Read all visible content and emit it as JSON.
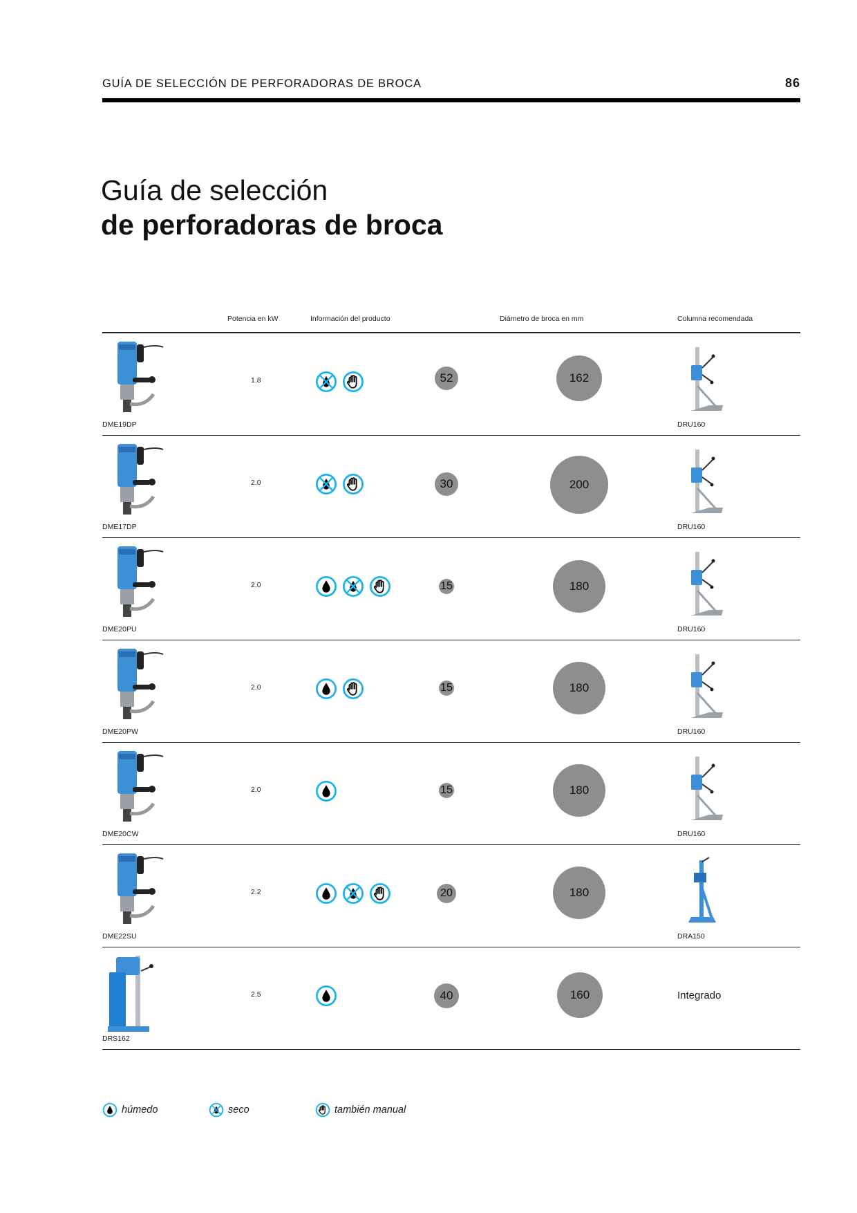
{
  "header": {
    "title": "GUÍA DE SELECCIÓN DE PERFORADORAS DE BROCA",
    "page_number": "86"
  },
  "title": {
    "line1": "Guía de selección",
    "line2": "de perforadoras de broca"
  },
  "columns": {
    "power": "Potencia en kW",
    "info": "Información del producto",
    "diameter": "Diámetro de broca en mm",
    "column": "Columna recomendada"
  },
  "rows": [
    {
      "model": "DME19DP",
      "power": "1.8",
      "icons": [
        "dry",
        "manual"
      ],
      "dia_min": "52",
      "dia_max": "162",
      "column": "DRU160"
    },
    {
      "model": "DME17DP",
      "power": "2.0",
      "icons": [
        "dry",
        "manual"
      ],
      "dia_min": "30",
      "dia_max": "200",
      "column": "DRU160"
    },
    {
      "model": "DME20PU",
      "power": "2.0",
      "icons": [
        "wet",
        "dry",
        "manual"
      ],
      "dia_min": "15",
      "dia_max": "180",
      "column": "DRU160"
    },
    {
      "model": "DME20PW",
      "power": "2.0",
      "icons": [
        "wet",
        "manual"
      ],
      "dia_min": "15",
      "dia_max": "180",
      "column": "DRU160"
    },
    {
      "model": "DME20CW",
      "power": "2.0",
      "icons": [
        "wet"
      ],
      "dia_min": "15",
      "dia_max": "180",
      "column": "DRU160"
    },
    {
      "model": "DME22SU",
      "power": "2.2",
      "icons": [
        "wet",
        "dry",
        "manual"
      ],
      "dia_min": "20",
      "dia_max": "180",
      "column": "DRA150"
    },
    {
      "model": "DRS162",
      "power": "2.5",
      "icons": [
        "wet"
      ],
      "dia_min": "40",
      "dia_max": "160",
      "column": "Integrado"
    }
  ],
  "legend": {
    "wet": "húmedo",
    "dry": "seco",
    "manual": "también manual"
  },
  "colors": {
    "icon_ring": "#1fb3e8",
    "circle_fill": "#8e8e8e",
    "drill_blue": "#3d8fd6"
  }
}
